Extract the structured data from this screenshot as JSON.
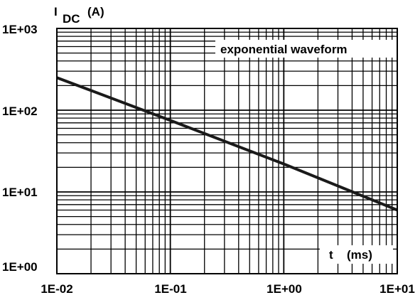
{
  "chart_data": {
    "type": "line",
    "scale": {
      "x": "log",
      "y": "log"
    },
    "grid": true,
    "xlim": [
      0.01,
      10
    ],
    "ylim": [
      1,
      1000
    ],
    "x_ticks": [
      "1E-02",
      "1E-01",
      "1E+00",
      "1E+01"
    ],
    "y_ticks": [
      "1E+00",
      "1E+01",
      "1E+02",
      "1E+03"
    ],
    "ylabel": {
      "symbol": "I",
      "subscript": "DC",
      "unit": "(A)"
    },
    "xlabel": {
      "symbol": "t",
      "unit": "(ms)"
    },
    "annotation": "exponential waveform",
    "series": [
      {
        "x": [
          0.01,
          0.1,
          1,
          10
        ],
        "y": [
          250,
          75,
          22,
          6
        ],
        "color": "#1a1a1a"
      }
    ]
  }
}
